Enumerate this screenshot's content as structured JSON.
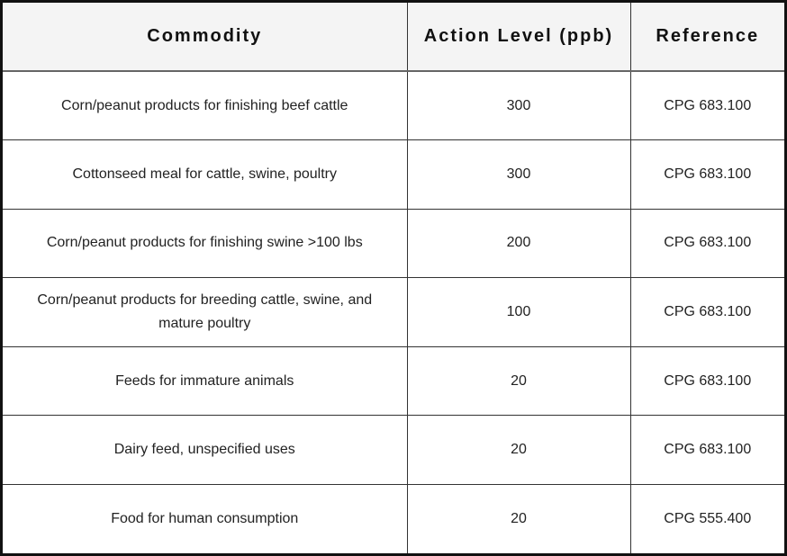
{
  "table": {
    "headers": [
      "Commodity",
      "Action Level (ppb)",
      "Reference"
    ],
    "rows": [
      {
        "commodity": "Corn/peanut products for finishing beef cattle",
        "action_level": "300",
        "reference": "CPG 683.100"
      },
      {
        "commodity": "Cottonseed meal for cattle, swine, poultry",
        "action_level": "300",
        "reference": "CPG 683.100"
      },
      {
        "commodity": "Corn/peanut products for finishing swine >100 lbs",
        "action_level": "200",
        "reference": "CPG 683.100"
      },
      {
        "commodity": "Corn/peanut products for breeding cattle, swine, and mature poultry",
        "action_level": "100",
        "reference": "CPG 683.100"
      },
      {
        "commodity": "Feeds for immature animals",
        "action_level": "20",
        "reference": "CPG 683.100"
      },
      {
        "commodity": "Dairy feed, unspecified uses",
        "action_level": "20",
        "reference": "CPG 683.100"
      },
      {
        "commodity": "Food for human consumption",
        "action_level": "20",
        "reference": "CPG 555.400"
      }
    ]
  }
}
